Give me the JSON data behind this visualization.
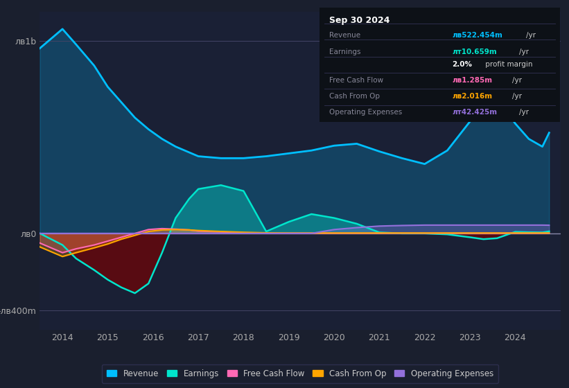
{
  "bg_color": "#1a1f2e",
  "plot_bg_color": "#1a2035",
  "title_box": {
    "date": "Sep 30 2024",
    "rows": [
      {
        "label": "Revenue",
        "value": "лв522.454m",
        "unit": "/yr",
        "color": "#00bfff"
      },
      {
        "label": "Earnings",
        "value": "лт10.659m",
        "unit": "/yr",
        "color": "#00e5cc"
      },
      {
        "label": "",
        "value": "2.0%",
        "unit": " profit margin",
        "color": "#ffffff"
      },
      {
        "label": "Free Cash Flow",
        "value": "лв1.285m",
        "unit": "/yr",
        "color": "#ff69b4"
      },
      {
        "label": "Cash From Op",
        "value": "лв2.016m",
        "unit": "/yr",
        "color": "#ffa500"
      },
      {
        "label": "Operating Expenses",
        "value": "лт42.425m",
        "unit": "/yr",
        "color": "#9370db"
      }
    ]
  },
  "years": [
    2013.5,
    2014.0,
    2014.3,
    2014.7,
    2015.0,
    2015.3,
    2015.6,
    2015.9,
    2016.2,
    2016.5,
    2016.8,
    2017.0,
    2017.5,
    2018.0,
    2018.5,
    2019.0,
    2019.5,
    2020.0,
    2020.5,
    2021.0,
    2021.5,
    2022.0,
    2022.5,
    2023.0,
    2023.3,
    2023.6,
    2024.0,
    2024.3,
    2024.6,
    2024.75
  ],
  "revenue": [
    960,
    1060,
    980,
    870,
    760,
    680,
    600,
    540,
    490,
    450,
    420,
    400,
    390,
    390,
    400,
    415,
    430,
    455,
    465,
    425,
    390,
    360,
    430,
    580,
    660,
    700,
    570,
    490,
    450,
    522
  ],
  "earnings": [
    0,
    -60,
    -130,
    -190,
    -240,
    -280,
    -310,
    -260,
    -100,
    80,
    180,
    230,
    250,
    220,
    10,
    60,
    100,
    80,
    50,
    5,
    0,
    0,
    -5,
    -20,
    -30,
    -25,
    8,
    6,
    5,
    10.6
  ],
  "free_cash_flow": [
    -50,
    -100,
    -80,
    -60,
    -40,
    -20,
    0,
    20,
    25,
    22,
    18,
    12,
    8,
    3,
    1,
    1,
    1,
    1,
    1,
    1,
    1,
    1,
    1,
    1,
    1,
    1,
    1,
    1,
    1,
    1.3
  ],
  "cash_from_op": [
    -70,
    -120,
    -100,
    -75,
    -55,
    -30,
    -10,
    10,
    18,
    20,
    18,
    15,
    10,
    6,
    3,
    2,
    2,
    2,
    2,
    2,
    2,
    2,
    2,
    2,
    2,
    2,
    2,
    2,
    2,
    2.0
  ],
  "operating_expenses": [
    0,
    0,
    0,
    0,
    0,
    0,
    0,
    0,
    0,
    0,
    0,
    0,
    0,
    0,
    0,
    0,
    0,
    20,
    30,
    38,
    41,
    43,
    43,
    43,
    43,
    43,
    43,
    43,
    43,
    42.4
  ],
  "yticks": [
    1000,
    0,
    -400
  ],
  "ylabels": [
    "лв1b",
    "лв0",
    "-лв400m"
  ],
  "xlim": [
    2013.5,
    2025.0
  ],
  "ylim": [
    -500,
    1150
  ],
  "xticks": [
    2014,
    2015,
    2016,
    2017,
    2018,
    2019,
    2020,
    2021,
    2022,
    2023,
    2024
  ],
  "legend": [
    {
      "label": "Revenue",
      "color": "#00bfff"
    },
    {
      "label": "Earnings",
      "color": "#00e5cc"
    },
    {
      "label": "Free Cash Flow",
      "color": "#ff69b4"
    },
    {
      "label": "Cash From Op",
      "color": "#ffa500"
    },
    {
      "label": "Operating Expenses",
      "color": "#9370db"
    }
  ]
}
